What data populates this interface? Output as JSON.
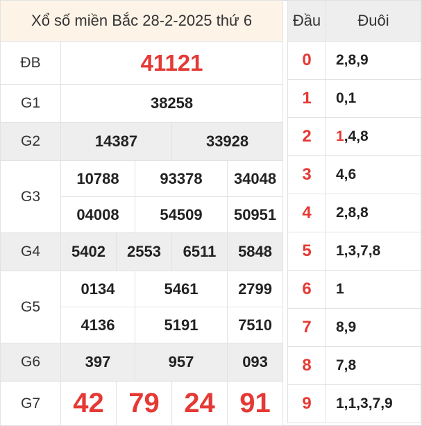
{
  "title": "Xổ số miền Bắc 28-2-2025 thứ 6",
  "prizes": {
    "db": {
      "label": "ĐB",
      "numbers": [
        "41121"
      ]
    },
    "g1": {
      "label": "G1",
      "numbers": [
        "38258"
      ]
    },
    "g2": {
      "label": "G2",
      "numbers": [
        "14387",
        "33928"
      ]
    },
    "g3": {
      "label": "G3",
      "numbers": [
        "10788",
        "93378",
        "34048",
        "04008",
        "54509",
        "50951"
      ]
    },
    "g4": {
      "label": "G4",
      "numbers": [
        "5402",
        "2553",
        "6511",
        "5848"
      ]
    },
    "g5": {
      "label": "G5",
      "numbers": [
        "0134",
        "5461",
        "2799",
        "4136",
        "5191",
        "7510"
      ]
    },
    "g6": {
      "label": "G6",
      "numbers": [
        "397",
        "957",
        "093"
      ]
    },
    "g7": {
      "label": "G7",
      "numbers": [
        "42",
        "79",
        "24",
        "91"
      ]
    }
  },
  "loto": {
    "head_label": "Đầu",
    "tail_label": "Đuôi",
    "rows": [
      {
        "head": "0",
        "tail_first": "",
        "tail_rest": "2,8,9"
      },
      {
        "head": "1",
        "tail_first": "",
        "tail_rest": "0,1"
      },
      {
        "head": "2",
        "tail_first": "1",
        "tail_rest": ",4,8"
      },
      {
        "head": "3",
        "tail_first": "",
        "tail_rest": "4,6"
      },
      {
        "head": "4",
        "tail_first": "",
        "tail_rest": "2,8,8"
      },
      {
        "head": "5",
        "tail_first": "",
        "tail_rest": "1,3,7,8"
      },
      {
        "head": "6",
        "tail_first": "",
        "tail_rest": "1"
      },
      {
        "head": "7",
        "tail_first": "",
        "tail_rest": "8,9"
      },
      {
        "head": "8",
        "tail_first": "",
        "tail_rest": "7,8"
      },
      {
        "head": "9",
        "tail_first": "",
        "tail_rest": "1,1,3,7,9"
      }
    ]
  },
  "colors": {
    "accent_red": "#e53935",
    "title_bg": "#fdf3e7",
    "shade_bg": "#eeeeee"
  }
}
